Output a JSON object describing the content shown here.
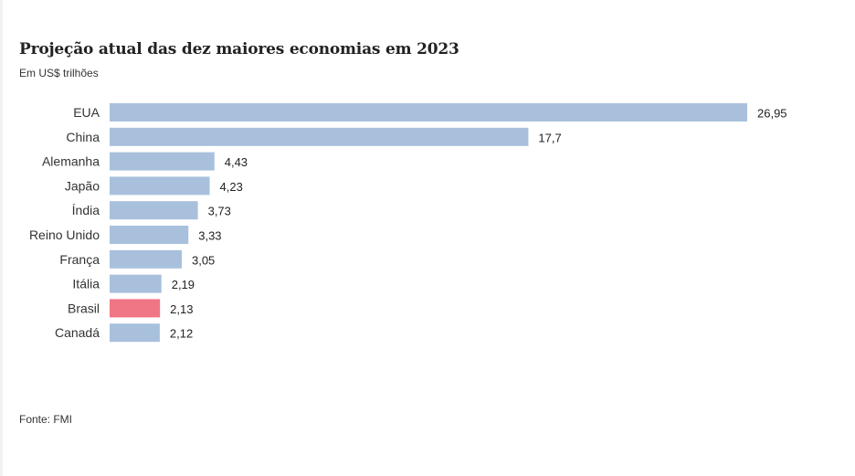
{
  "chart_data": {
    "type": "bar",
    "orientation": "horizontal",
    "title": "Projeção atual das dez maiores economias em 2023",
    "subtitle": "Em US$ trilhões",
    "source": "Fonte: FMI",
    "categories": [
      "EUA",
      "China",
      "Alemanha",
      "Japão",
      "Índia",
      "Reino Unido",
      "França",
      "Itália",
      "Brasil",
      "Canadá"
    ],
    "values": [
      26.95,
      17.7,
      4.43,
      4.23,
      3.73,
      3.33,
      3.05,
      2.19,
      2.13,
      2.12
    ],
    "value_labels": [
      "26,95",
      "17,7",
      "4,43",
      "4,23",
      "3,73",
      "3,33",
      "3,05",
      "2,19",
      "2,13",
      "2,12"
    ],
    "highlight": "Brasil",
    "colors": {
      "bar": "#a8c0dc",
      "highlight": "#f07585"
    },
    "xlabel": "",
    "ylabel": "",
    "xlim": [
      0,
      26.95
    ],
    "grid": false,
    "legend": false
  }
}
